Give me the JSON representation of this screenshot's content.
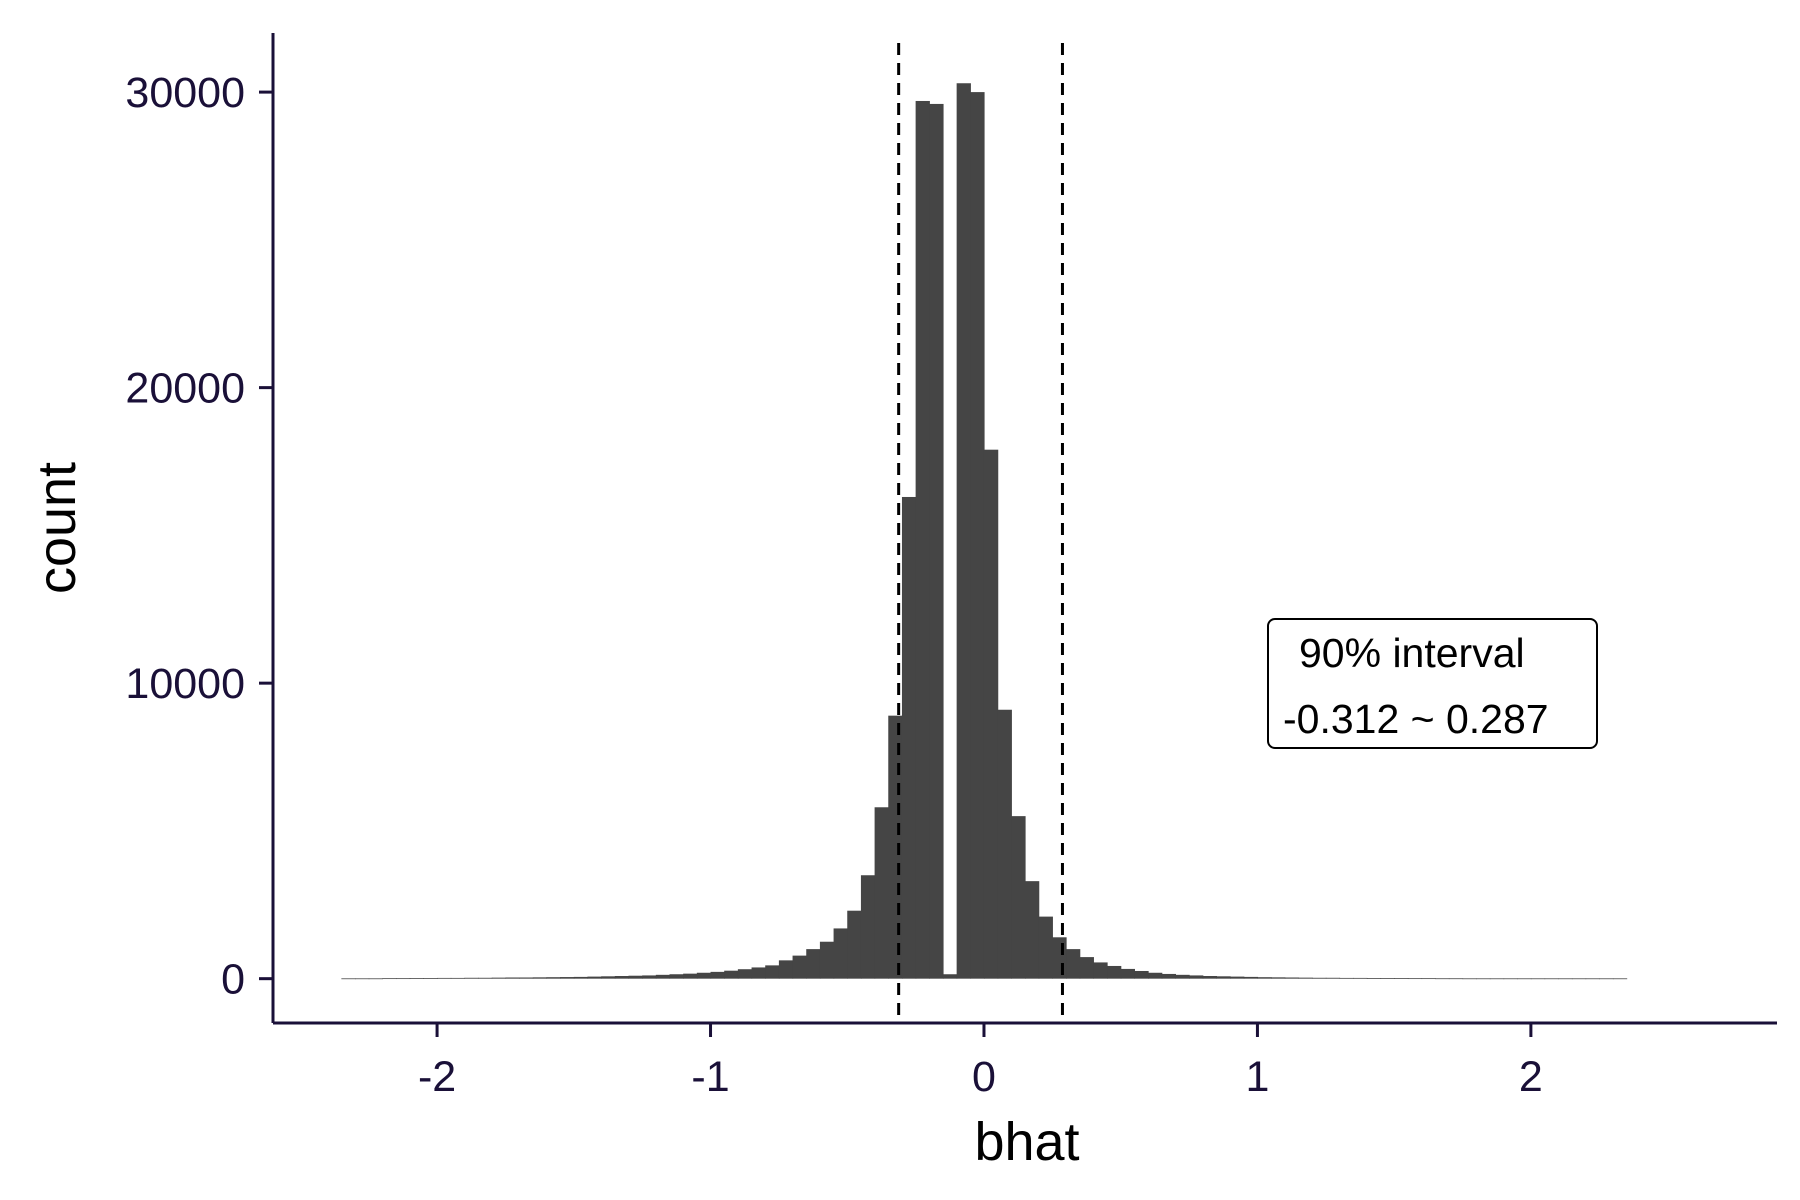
{
  "chart_data": {
    "type": "histogram",
    "xlabel": "bhat",
    "ylabel": "count",
    "xlim": [
      -2.6,
      2.9
    ],
    "ylim": [
      -1500,
      32000
    ],
    "x_ticks": [
      -2,
      -1,
      0,
      1,
      2
    ],
    "x_tick_labels": [
      "-2",
      "-1",
      "0",
      "1",
      "2"
    ],
    "y_ticks": [
      0,
      10000,
      20000,
      30000
    ],
    "y_tick_labels": [
      "0",
      "10000",
      "20000",
      "30000"
    ],
    "bin_width": 0.05,
    "bins_start": -2.35,
    "counts": [
      10,
      10,
      10,
      15,
      15,
      20,
      20,
      25,
      25,
      30,
      30,
      35,
      40,
      40,
      45,
      50,
      55,
      60,
      70,
      80,
      90,
      100,
      110,
      130,
      150,
      170,
      200,
      230,
      270,
      320,
      380,
      450,
      620,
      780,
      1000,
      1250,
      1700,
      2300,
      3500,
      5800,
      8900,
      16300,
      29700,
      29600,
      150,
      30300,
      30000,
      17900,
      9100,
      5500,
      3300,
      2100,
      1400,
      1000,
      730,
      550,
      430,
      330,
      260,
      200,
      160,
      130,
      110,
      90,
      80,
      70,
      60,
      50,
      45,
      40,
      35,
      30,
      30,
      25,
      25,
      20,
      20,
      18,
      15,
      15,
      12,
      12,
      10,
      10,
      10,
      10,
      10,
      10,
      10,
      10,
      10,
      10,
      10,
      10
    ],
    "bar_color": "#454545",
    "reference_lines": [
      {
        "name": "lower-90-percent-bound",
        "x": -0.312,
        "style": "dashed"
      },
      {
        "name": "upper-90-percent-bound",
        "x": 0.287,
        "style": "dashed"
      }
    ],
    "annotation": {
      "line1": "90% interval",
      "line2": "-0.312 ~ 0.287",
      "position": "right-middle"
    }
  }
}
